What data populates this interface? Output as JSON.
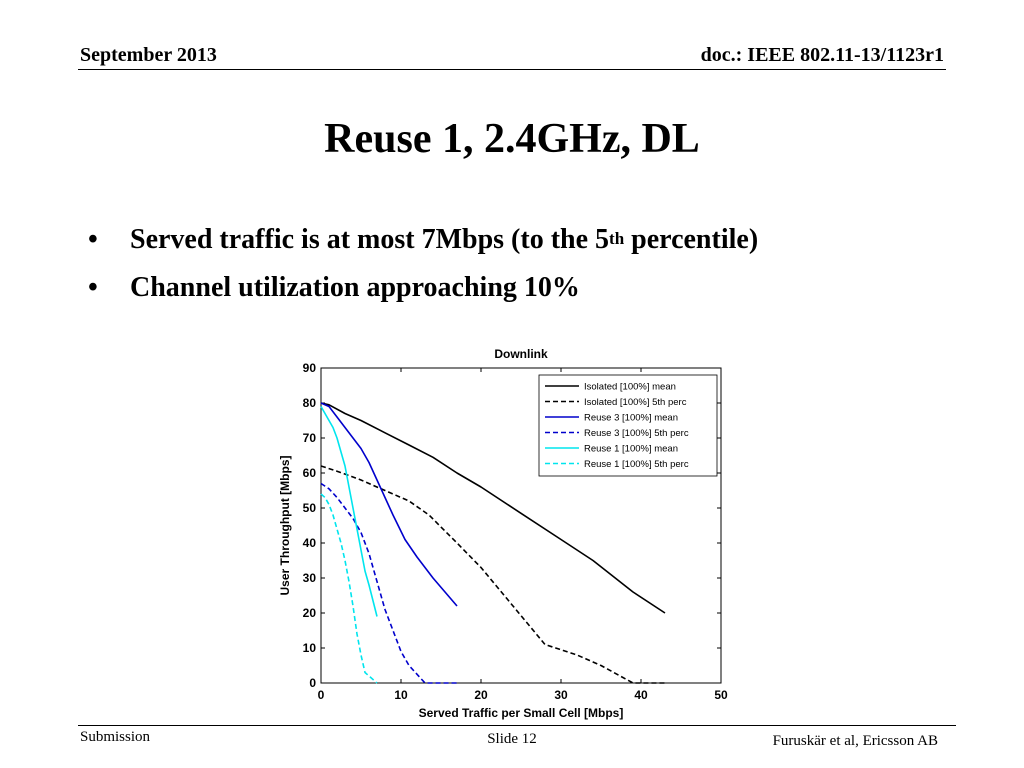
{
  "header": {
    "date": "September 2013",
    "doc": "doc.: IEEE 802.11-13/1123r1"
  },
  "slide": {
    "title": "Reuse 1, 2.4GHz, DL",
    "bullets": [
      {
        "text": "Served traffic is at most 7Mbps (to the 5",
        "sup": "th",
        "after": " percentile)"
      },
      {
        "text": "Channel utilization approaching 10%",
        "sup": "",
        "after": ""
      }
    ]
  },
  "footer": {
    "left": "Submission",
    "center": "Slide 12",
    "right": "Furuskär et al, Ericsson AB"
  },
  "chart_data": {
    "type": "line",
    "title": "Downlink",
    "xlabel": "Served Traffic per Small Cell [Mbps]",
    "ylabel": "User Throughput [Mbps]",
    "xlim": [
      0,
      50
    ],
    "ylim": [
      0,
      90
    ],
    "xticks": [
      0,
      10,
      20,
      30,
      40,
      50
    ],
    "yticks": [
      0,
      10,
      20,
      30,
      40,
      50,
      60,
      70,
      80,
      90
    ],
    "grid": false,
    "legend": "top-right",
    "series": [
      {
        "name": "Isolated [100%] mean",
        "color": "#000000",
        "dash": "solid",
        "x": [
          0,
          1,
          3,
          5,
          8,
          11,
          14,
          17,
          20,
          25,
          30,
          34,
          39,
          43
        ],
        "y": [
          80,
          79.5,
          77,
          75,
          71.5,
          68,
          64.5,
          60,
          56,
          48.5,
          41,
          35,
          26,
          20
        ]
      },
      {
        "name": "Isolated [100%] 5th perc",
        "color": "#000000",
        "dash": "dashed",
        "x": [
          0,
          2,
          5,
          8,
          11,
          13.5,
          17,
          20,
          24,
          28,
          32,
          35,
          39,
          43
        ],
        "y": [
          62,
          60.5,
          58,
          55,
          52,
          48,
          40,
          33,
          22,
          11,
          8,
          5,
          0,
          0
        ]
      },
      {
        "name": "Reuse 3 [100%] mean",
        "color": "#0000cc",
        "dash": "solid",
        "x": [
          0,
          1,
          2,
          3,
          4,
          5,
          6,
          7,
          8,
          9,
          10.5,
          12,
          14,
          17
        ],
        "y": [
          80,
          79,
          76,
          73,
          70,
          67,
          63,
          58,
          53,
          48,
          41,
          36,
          30,
          22
        ]
      },
      {
        "name": "Reuse 3 [100%] 5th perc",
        "color": "#0000cc",
        "dash": "dashed",
        "x": [
          0,
          1,
          2,
          3,
          4,
          5,
          6,
          7,
          8,
          9,
          10,
          11,
          13,
          17
        ],
        "y": [
          57,
          55.5,
          53,
          50,
          47,
          43,
          37,
          29,
          21,
          15,
          9,
          5,
          0,
          0
        ]
      },
      {
        "name": "Reuse 1 [100%] mean",
        "color": "#00e5ee",
        "dash": "solid",
        "x": [
          0,
          0.5,
          1,
          1.5,
          2,
          2.5,
          3,
          3.5,
          4,
          4.5,
          5,
          5.5,
          6,
          7
        ],
        "y": [
          79,
          77,
          75,
          73,
          70,
          66,
          62,
          56,
          50,
          44,
          38,
          32,
          28,
          19
        ]
      },
      {
        "name": "Reuse 1 [100%] 5th perc",
        "color": "#00e5ee",
        "dash": "dashed",
        "x": [
          0,
          0.5,
          1,
          1.5,
          2,
          2.5,
          3,
          3.5,
          4,
          4.5,
          5,
          5.5,
          6,
          7
        ],
        "y": [
          54,
          53,
          51,
          48,
          44,
          40,
          35,
          29,
          22,
          14,
          8,
          3,
          2,
          0
        ]
      }
    ]
  }
}
